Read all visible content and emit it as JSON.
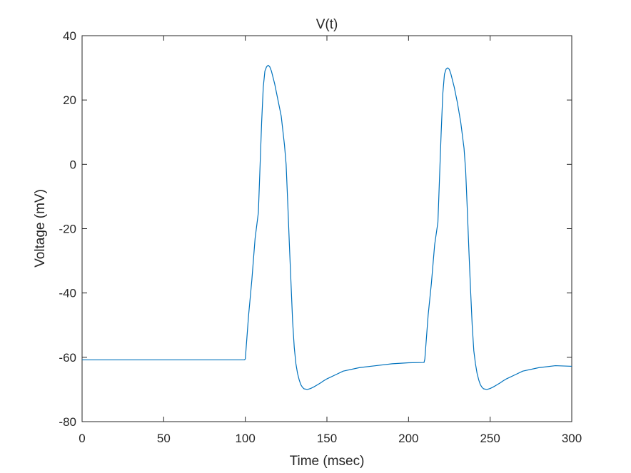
{
  "chart_data": {
    "type": "line",
    "title": "V(t)",
    "xlabel": "Time (msec)",
    "ylabel": "Voltage (mV)",
    "xlim": [
      0,
      300
    ],
    "ylim": [
      -80,
      40
    ],
    "x_ticks": [
      0,
      50,
      100,
      150,
      200,
      250,
      300
    ],
    "y_ticks": [
      -80,
      -60,
      -40,
      -20,
      0,
      20,
      40
    ],
    "grid": false,
    "legend": "none",
    "colors": {
      "series": "#0072bd",
      "axes": "#262626",
      "background": "#ffffff"
    },
    "series": [
      {
        "x": [
          0,
          50,
          99.5,
          100,
          102,
          104,
          106,
          108,
          110,
          111,
          112,
          113,
          114,
          115,
          116,
          118,
          120,
          122,
          124,
          125,
          126,
          127,
          128,
          129,
          130,
          131,
          132,
          133,
          134,
          135,
          136,
          138,
          140,
          142,
          144,
          146,
          148,
          150,
          155,
          160,
          170,
          180,
          190,
          200,
          209.5,
          210,
          212,
          214,
          216,
          218,
          220,
          221,
          222,
          223,
          224,
          225,
          226,
          228,
          230,
          232,
          234,
          235,
          236,
          237,
          238,
          239,
          240,
          241,
          242,
          243,
          244,
          245,
          246,
          248,
          250,
          252,
          254,
          256,
          258,
          260,
          265,
          270,
          280,
          290,
          300
        ],
        "y": [
          -60.8,
          -60.8,
          -60.8,
          -60.5,
          -47,
          -36,
          -23,
          -15,
          13,
          24,
          29,
          30.3,
          30.8,
          30.3,
          29,
          25,
          20,
          15,
          6,
          0,
          -12,
          -25,
          -37,
          -49,
          -57,
          -62,
          -65,
          -67,
          -68.5,
          -69.3,
          -69.8,
          -70,
          -69.7,
          -69.2,
          -68.6,
          -68,
          -67.3,
          -66.7,
          -65.5,
          -64.3,
          -63.2,
          -62.6,
          -62,
          -61.7,
          -61.6,
          -60.5,
          -47,
          -37,
          -25,
          -18,
          10,
          22,
          28,
          29.6,
          30,
          29.5,
          28,
          24,
          19,
          13,
          5,
          -2,
          -14,
          -27,
          -39,
          -50,
          -58,
          -62,
          -65,
          -67,
          -68.5,
          -69.3,
          -69.8,
          -70,
          -69.7,
          -69.2,
          -68.6,
          -68,
          -67.3,
          -66.7,
          -65.5,
          -64.3,
          -63.2,
          -62.6,
          -62.8
        ]
      }
    ]
  }
}
